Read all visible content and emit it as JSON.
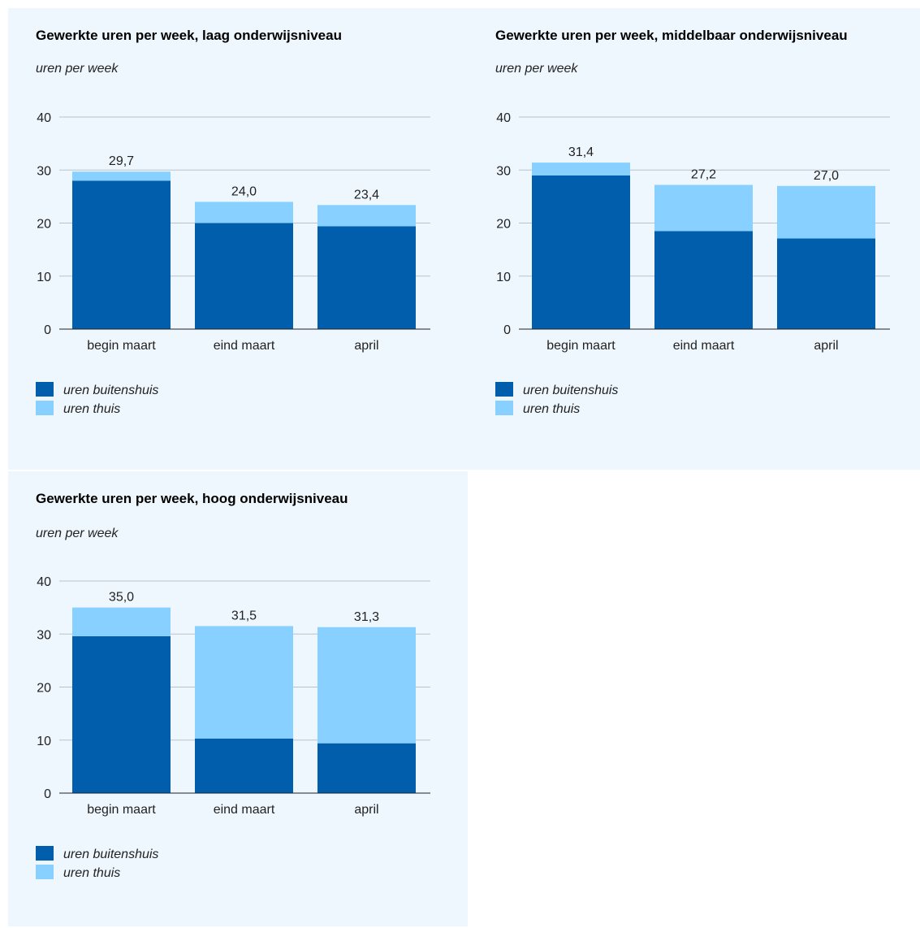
{
  "chart_data": [
    {
      "type": "bar",
      "stacked": true,
      "title": "Gewerkte uren per week, laag onderwijsniveau",
      "ylabel": "uren per week",
      "ylim": [
        0,
        40
      ],
      "yticks": [
        0,
        10,
        20,
        30,
        40
      ],
      "grid": true,
      "legend": "bottom-left",
      "categories": [
        "begin maart",
        "eind maart",
        "april"
      ],
      "totals": [
        "29,7",
        "24,0",
        "23,4"
      ],
      "series": [
        {
          "name": "uren buitenshuis",
          "color": "#005ead",
          "values": [
            28.0,
            20.0,
            19.4
          ]
        },
        {
          "name": "uren thuis",
          "color": "#87d0ff",
          "values": [
            1.7,
            4.0,
            4.0
          ]
        }
      ]
    },
    {
      "type": "bar",
      "stacked": true,
      "title": "Gewerkte uren per week, middelbaar onderwijsniveau",
      "ylabel": "uren per week",
      "ylim": [
        0,
        40
      ],
      "yticks": [
        0,
        10,
        20,
        30,
        40
      ],
      "grid": true,
      "legend": "bottom-left",
      "categories": [
        "begin maart",
        "eind maart",
        "april"
      ],
      "totals": [
        "31,4",
        "27,2",
        "27,0"
      ],
      "series": [
        {
          "name": "uren buitenshuis",
          "color": "#005ead",
          "values": [
            29.0,
            18.5,
            17.1
          ]
        },
        {
          "name": "uren thuis",
          "color": "#87d0ff",
          "values": [
            2.4,
            8.7,
            9.9
          ]
        }
      ]
    },
    {
      "type": "bar",
      "stacked": true,
      "title": "Gewerkte uren per week, hoog onderwijsniveau",
      "ylabel": "uren per week",
      "ylim": [
        0,
        40
      ],
      "yticks": [
        0,
        10,
        20,
        30,
        40
      ],
      "grid": true,
      "legend": "bottom-left",
      "categories": [
        "begin maart",
        "eind maart",
        "april"
      ],
      "totals": [
        "35,0",
        "31,5",
        "31,3"
      ],
      "series": [
        {
          "name": "uren buitenshuis",
          "color": "#005ead",
          "values": [
            29.6,
            10.3,
            9.4
          ]
        },
        {
          "name": "uren thuis",
          "color": "#87d0ff",
          "values": [
            5.4,
            21.2,
            21.9
          ]
        }
      ]
    }
  ]
}
